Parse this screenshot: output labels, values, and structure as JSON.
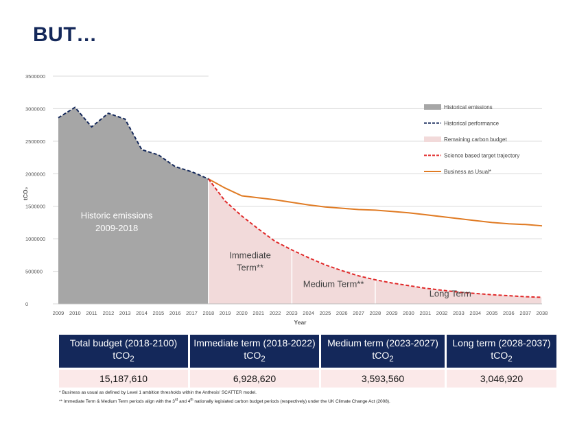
{
  "title": "BUT…",
  "chart_data": {
    "type": "area",
    "ylabel": "tCO₂",
    "xlabel": "Year",
    "ylim": [
      0,
      3500000
    ],
    "y_ticks": [
      0,
      500000,
      1000000,
      1500000,
      2000000,
      2500000,
      3000000,
      3500000
    ],
    "y_tick_labels": [
      "0",
      "500000",
      "1000000",
      "1500000",
      "2000000",
      "2500000",
      "3000000",
      "3500000"
    ],
    "x_ticks": [
      "2009",
      "2010",
      "2011",
      "2012",
      "2013",
      "2014",
      "2015",
      "2016",
      "2017",
      "2018",
      "2019",
      "2020",
      "2021",
      "2022",
      "2023",
      "2024",
      "2025",
      "2026",
      "2027",
      "2028",
      "2029",
      "2030",
      "2031",
      "2032",
      "2033",
      "2034",
      "2035",
      "2036",
      "2037",
      "2038"
    ],
    "series": [
      {
        "name": "Historical emissions",
        "kind": "area",
        "color": "#a6a6a6",
        "x": [
          2009,
          2010,
          2011,
          2012,
          2013,
          2014,
          2015,
          2016,
          2017,
          2018
        ],
        "values": [
          2860000,
          3020000,
          2720000,
          2930000,
          2840000,
          2370000,
          2290000,
          2110000,
          2030000,
          1920000
        ]
      },
      {
        "name": "Historical performance",
        "kind": "line-dashed",
        "color": "#14285a",
        "x": [
          2009,
          2010,
          2011,
          2012,
          2013,
          2014,
          2015,
          2016,
          2017,
          2018
        ],
        "values": [
          2860000,
          3020000,
          2720000,
          2930000,
          2840000,
          2370000,
          2290000,
          2110000,
          2030000,
          1920000
        ]
      },
      {
        "name": "Remaining carbon budget",
        "kind": "area",
        "color": "#f2dada",
        "x": [
          2018,
          2019,
          2020,
          2021,
          2022,
          2023,
          2024,
          2025,
          2026,
          2027,
          2028,
          2029,
          2030,
          2031,
          2032,
          2033,
          2034,
          2035,
          2036,
          2037,
          2038
        ],
        "values": [
          1920000,
          1580000,
          1350000,
          1150000,
          960000,
          830000,
          710000,
          600000,
          510000,
          430000,
          370000,
          320000,
          280000,
          240000,
          210000,
          180000,
          160000,
          140000,
          125000,
          110000,
          100000
        ]
      },
      {
        "name": "Science based target trajectory",
        "kind": "line-dashed",
        "color": "#e02828",
        "x": [
          2018,
          2019,
          2020,
          2021,
          2022,
          2023,
          2024,
          2025,
          2026,
          2027,
          2028,
          2029,
          2030,
          2031,
          2032,
          2033,
          2034,
          2035,
          2036,
          2037,
          2038
        ],
        "values": [
          1920000,
          1580000,
          1350000,
          1150000,
          960000,
          830000,
          710000,
          600000,
          510000,
          430000,
          370000,
          320000,
          280000,
          240000,
          210000,
          180000,
          160000,
          140000,
          125000,
          110000,
          100000
        ]
      },
      {
        "name": "Business as Usual*",
        "kind": "line",
        "color": "#e07b24",
        "x": [
          2018,
          2019,
          2020,
          2021,
          2022,
          2023,
          2024,
          2025,
          2026,
          2027,
          2028,
          2029,
          2030,
          2031,
          2032,
          2033,
          2034,
          2035,
          2036,
          2037,
          2038
        ],
        "values": [
          1920000,
          1780000,
          1660000,
          1630000,
          1600000,
          1560000,
          1520000,
          1490000,
          1470000,
          1450000,
          1440000,
          1420000,
          1400000,
          1370000,
          1340000,
          1310000,
          1280000,
          1250000,
          1230000,
          1220000,
          1200000
        ]
      }
    ],
    "period_dividers": [
      2018,
      2023,
      2028,
      2038
    ],
    "annotations": [
      {
        "text": "Historic emissions",
        "x": 2012.5,
        "y": 1310000,
        "color": "#ffffff"
      },
      {
        "text": "2009-2018",
        "x": 2012.5,
        "y": 1120000,
        "color": "#ffffff"
      },
      {
        "text": "Immediate",
        "x": 2020.5,
        "y": 700000,
        "color": "#444444"
      },
      {
        "text": "Term**",
        "x": 2020.5,
        "y": 510000,
        "color": "#444444"
      },
      {
        "text": "Medium Term**",
        "x": 2025.5,
        "y": 260000,
        "color": "#444444"
      },
      {
        "text": "Long Term",
        "x": 2032.5,
        "y": 110000,
        "color": "#444444"
      }
    ],
    "legend_position": "top-right"
  },
  "table": {
    "headers": [
      {
        "main": "Total budget (2018-2100)",
        "unit_pre": "tCO",
        "unit_sub": "2"
      },
      {
        "main": "Immediate term (2018-2022)",
        "unit_pre": "tCO",
        "unit_sub": "2"
      },
      {
        "main": "Medium term (2023-2027)",
        "unit_pre": "tCO",
        "unit_sub": "2"
      },
      {
        "main": "Long term (2028-2037)",
        "unit_pre": "tCO",
        "unit_sub": "2"
      }
    ],
    "values": [
      "15,187,610",
      "6,928,620",
      "3,593,560",
      "3,046,920"
    ]
  },
  "footnotes": {
    "note1": "* Business as usual as defined by Level 1 ambition thresholds within the Anthesis' SCATTER model.",
    "note2_a": "** Immediate Term & Medium Term periods align with the 3",
    "note2_sup1": "rd",
    "note2_b": " and 4",
    "note2_sup2": "th",
    "note2_c": " nationally legislated carbon budget periods (respectively) under the UK Climate Change Act (2008)."
  }
}
